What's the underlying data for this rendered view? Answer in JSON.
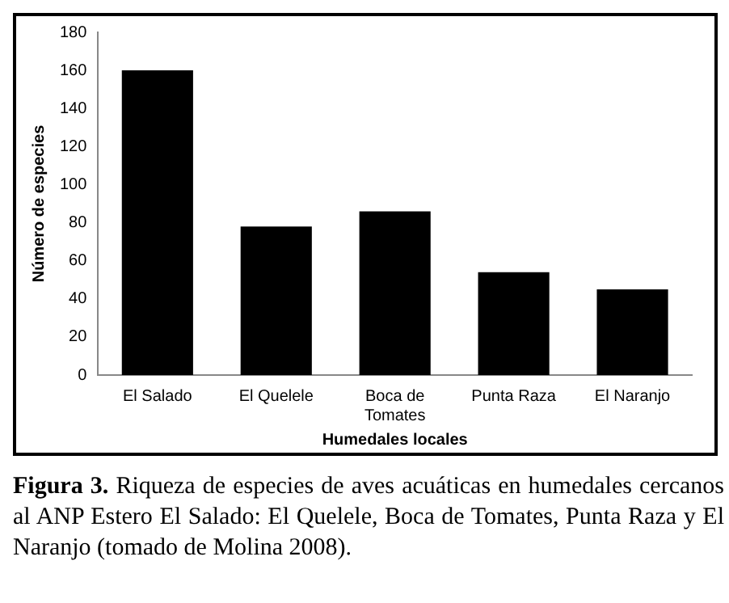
{
  "chart_data": {
    "type": "bar",
    "xlabel": "Humedales locales",
    "ylabel": "Número de especies",
    "categories": [
      "El Salado",
      "El Quelele",
      "Boca de Tomates",
      "Punta Raza",
      "El Naranjo"
    ],
    "values": [
      160,
      78,
      86,
      54,
      45
    ],
    "color": "#000000",
    "ylim": [
      0,
      180
    ],
    "yticks": [
      0,
      20,
      40,
      60,
      80,
      100,
      120,
      140,
      160,
      180
    ],
    "grid": false,
    "legend": false,
    "annotations": [
      "Figura 3. Riqueza de especies de aves acuáticas en humedales cercanos al ANP Estero El Salado: El Quelele, Boca de Tomates, Punta Raza y El Naranjo (tomado de Molina 2008)."
    ]
  }
}
